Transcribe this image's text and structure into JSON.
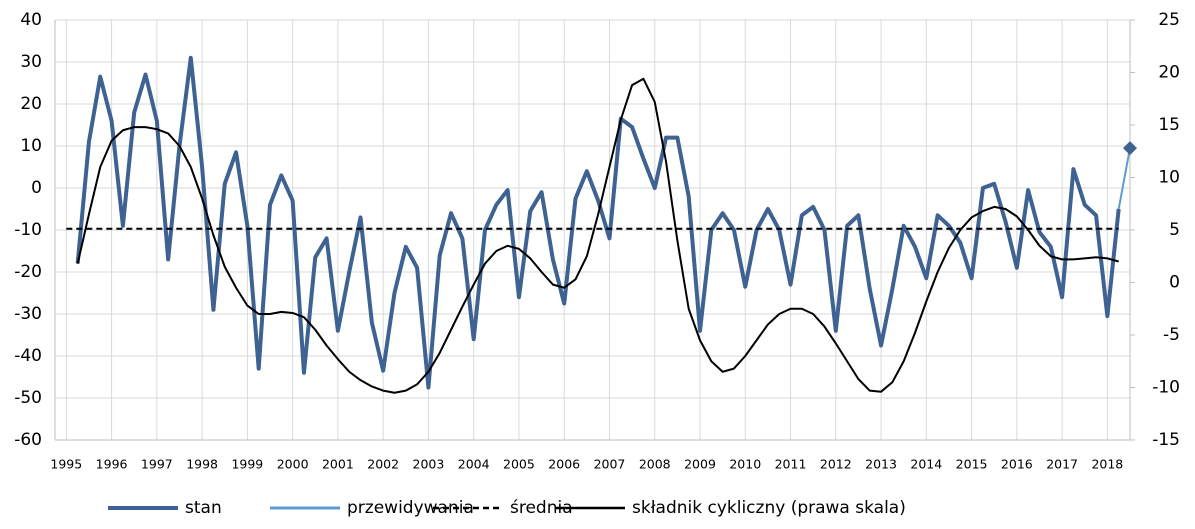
{
  "chart_data": {
    "type": "line",
    "x": [
      1995.25,
      1995.5,
      1995.75,
      1996,
      1996.25,
      1996.5,
      1996.75,
      1997,
      1997.25,
      1997.5,
      1997.75,
      1998,
      1998.25,
      1998.5,
      1998.75,
      1999,
      1999.25,
      1999.5,
      1999.75,
      2000,
      2000.25,
      2000.5,
      2000.75,
      2001,
      2001.25,
      2001.5,
      2001.75,
      2002,
      2002.25,
      2002.5,
      2002.75,
      2003,
      2003.25,
      2003.5,
      2003.75,
      2004,
      2004.25,
      2004.5,
      2004.75,
      2005,
      2005.25,
      2005.5,
      2005.75,
      2006,
      2006.25,
      2006.5,
      2006.75,
      2007,
      2007.25,
      2007.5,
      2007.75,
      2008,
      2008.25,
      2008.5,
      2008.75,
      2009,
      2009.25,
      2009.5,
      2009.75,
      2010,
      2010.25,
      2010.5,
      2010.75,
      2011,
      2011.25,
      2011.5,
      2011.75,
      2012,
      2012.25,
      2012.5,
      2012.75,
      2013,
      2013.25,
      2013.5,
      2013.75,
      2014,
      2014.25,
      2014.5,
      2014.75,
      2015,
      2015.25,
      2015.5,
      2015.75,
      2016,
      2016.25,
      2016.5,
      2016.75,
      2017,
      2017.25,
      2017.5,
      2017.75,
      2018,
      2018.25
    ],
    "xlim": [
      1994.75,
      2018.5
    ],
    "xticks": [
      1995,
      1996,
      1997,
      1998,
      1999,
      2000,
      2001,
      2002,
      2003,
      2004,
      2005,
      2006,
      2007,
      2008,
      2009,
      2010,
      2011,
      2012,
      2013,
      2014,
      2015,
      2016,
      2017,
      2018
    ],
    "ylim": [
      -60,
      40
    ],
    "yticks": [
      -60,
      -50,
      -40,
      -30,
      -20,
      -10,
      0,
      10,
      20,
      30,
      40
    ],
    "y2lim": [
      -15,
      25
    ],
    "y2ticks": [
      -15,
      -10,
      -5,
      0,
      5,
      10,
      15,
      20,
      25
    ],
    "grid": true,
    "legend": "bottom",
    "series": [
      {
        "name": "stan",
        "color": "#3e6291",
        "values": [
          -18,
          11,
          26.5,
          16,
          -9,
          18,
          27,
          16,
          -17,
          10,
          31,
          5,
          -29,
          1,
          8.5,
          -9,
          -43,
          -4,
          3,
          -3,
          -44,
          -16.5,
          -12,
          -34,
          -20,
          -7,
          -32,
          -43.5,
          -25,
          -14,
          -19,
          -47.5,
          -16,
          -6,
          -12,
          -36,
          -10,
          -4,
          -0.5,
          -26,
          -5.5,
          -1,
          -17,
          -27.5,
          -2.5,
          4,
          -3,
          -12,
          16.5,
          14.5,
          7,
          0,
          12,
          12,
          -2,
          -34,
          -10,
          -6,
          -10,
          -23.5,
          -10,
          -5,
          -10,
          -23,
          -6.5,
          -4.5,
          -10,
          -34,
          -9,
          -6.5,
          -24,
          -37.5,
          -24,
          -9,
          -14,
          -21.5,
          -6.5,
          -9,
          -13,
          -21.5,
          0,
          1,
          -8,
          -19,
          -0.5,
          -10.5,
          -14,
          -26,
          4.5,
          -4,
          -6.5,
          -30.5,
          -5
        ]
      },
      {
        "name": "przewidywania",
        "color": "#5b9bd5",
        "x": [
          2018.25,
          2018.5
        ],
        "values": [
          -5,
          9.5
        ],
        "marker": "diamond"
      },
      {
        "name": "średnia",
        "color": "#000000",
        "dash": true,
        "x": [
          1995,
          2018.25
        ],
        "values": [
          -9.7,
          -9.7
        ]
      },
      {
        "name": "składnik cykliczny (prawa skala)",
        "color": "#000000",
        "axis": "y2",
        "values": [
          1.8,
          6.5,
          11,
          13.5,
          14.5,
          14.8,
          14.8,
          14.6,
          14.2,
          13,
          11,
          8,
          4.5,
          1.5,
          -0.5,
          -2.2,
          -3,
          -3,
          -2.8,
          -2.9,
          -3.3,
          -4.5,
          -6,
          -7.3,
          -8.5,
          -9.3,
          -9.9,
          -10.3,
          -10.5,
          -10.3,
          -9.7,
          -8.5,
          -6.7,
          -4.5,
          -2.3,
          -0.2,
          1.8,
          3,
          3.5,
          3.2,
          2.3,
          1,
          -0.2,
          -0.5,
          0.3,
          2.5,
          6.5,
          11,
          15.5,
          18.8,
          19.4,
          17.2,
          11.5,
          4,
          -2.5,
          -5.5,
          -7.5,
          -8.5,
          -8.2,
          -7,
          -5.5,
          -4,
          -3,
          -2.5,
          -2.5,
          -3,
          -4.2,
          -5.8,
          -7.5,
          -9.2,
          -10.3,
          -10.4,
          -9.5,
          -7.5,
          -4.8,
          -1.8,
          1,
          3.3,
          5,
          6.2,
          6.8,
          7.2,
          7,
          6.3,
          5,
          3.5,
          2.5,
          2.2,
          2.2,
          2.3,
          2.4,
          2.3,
          2
        ]
      }
    ]
  }
}
